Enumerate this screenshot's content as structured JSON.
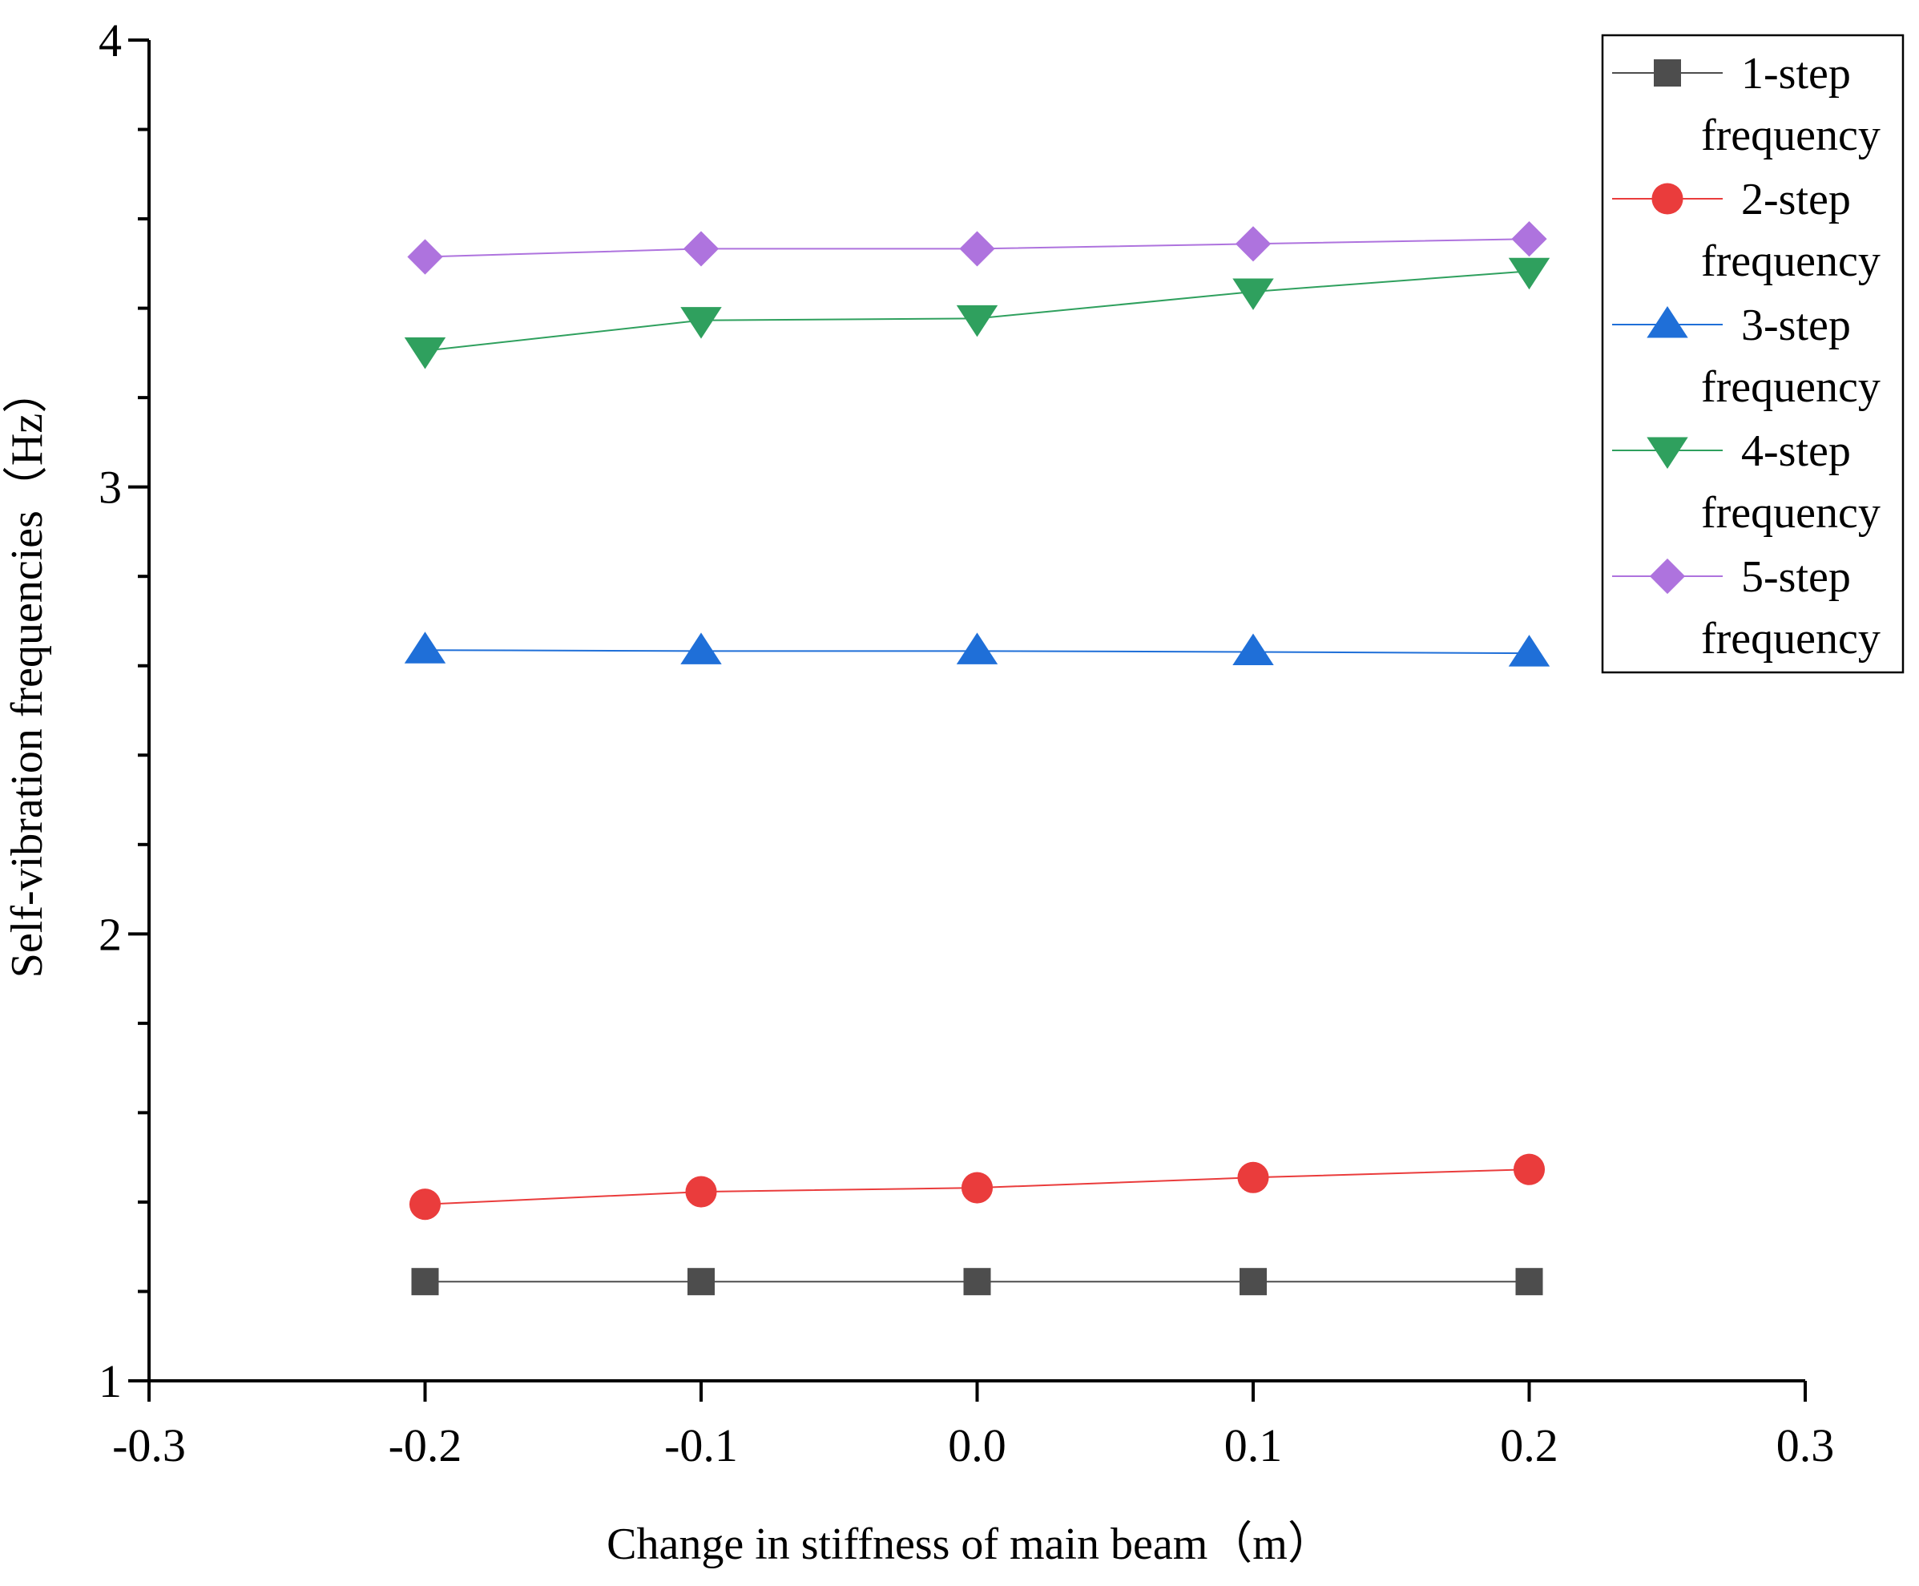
{
  "chart_data": {
    "type": "line",
    "title": "",
    "xlabel": "Change in stiffness of main beam（m）",
    "ylabel": "Self-vibration frequencies（Hz）",
    "xlim": [
      -0.3,
      0.3
    ],
    "ylim": [
      1,
      4
    ],
    "xticks": [
      -0.3,
      -0.2,
      -0.1,
      0.0,
      0.1,
      0.2,
      0.3
    ],
    "xtick_labels": [
      "-0.3",
      "-0.2",
      "-0.1",
      "0.0",
      "0.1",
      "0.2",
      "0.3"
    ],
    "yticks": [
      1,
      2,
      3,
      4
    ],
    "ytick_labels": [
      "1",
      "2",
      "3",
      "4"
    ],
    "y_minor_step": 0.2,
    "grid": false,
    "legend_position": "top-right",
    "x": [
      -0.2,
      -0.1,
      0.0,
      0.1,
      0.2
    ],
    "series": [
      {
        "name": "1-step frequency",
        "legend_line1": "1-step",
        "legend_line2": "frequency",
        "color": "#4d4d4d",
        "marker": "square",
        "values": [
          1.222,
          1.222,
          1.222,
          1.222,
          1.222
        ]
      },
      {
        "name": "2-step frequency",
        "legend_line1": "2-step",
        "legend_line2": "frequency",
        "color": "#ea3c3c",
        "marker": "circle",
        "values": [
          1.395,
          1.423,
          1.432,
          1.455,
          1.473
        ]
      },
      {
        "name": "3-step frequency",
        "legend_line1": "3-step",
        "legend_line2": "frequency",
        "color": "#1f6fd8",
        "marker": "triangle-up",
        "values": [
          2.635,
          2.633,
          2.633,
          2.631,
          2.628
        ]
      },
      {
        "name": "4-step frequency",
        "legend_line1": "4-step",
        "legend_line2": "frequency",
        "color": "#2fa05e",
        "marker": "triangle-down",
        "values": [
          3.305,
          3.373,
          3.377,
          3.437,
          3.483
        ]
      },
      {
        "name": "5-step frequency",
        "legend_line1": "5-step",
        "legend_line2": "frequency",
        "color": "#ae73de",
        "marker": "diamond",
        "values": [
          3.515,
          3.533,
          3.533,
          3.544,
          3.555
        ]
      }
    ]
  }
}
